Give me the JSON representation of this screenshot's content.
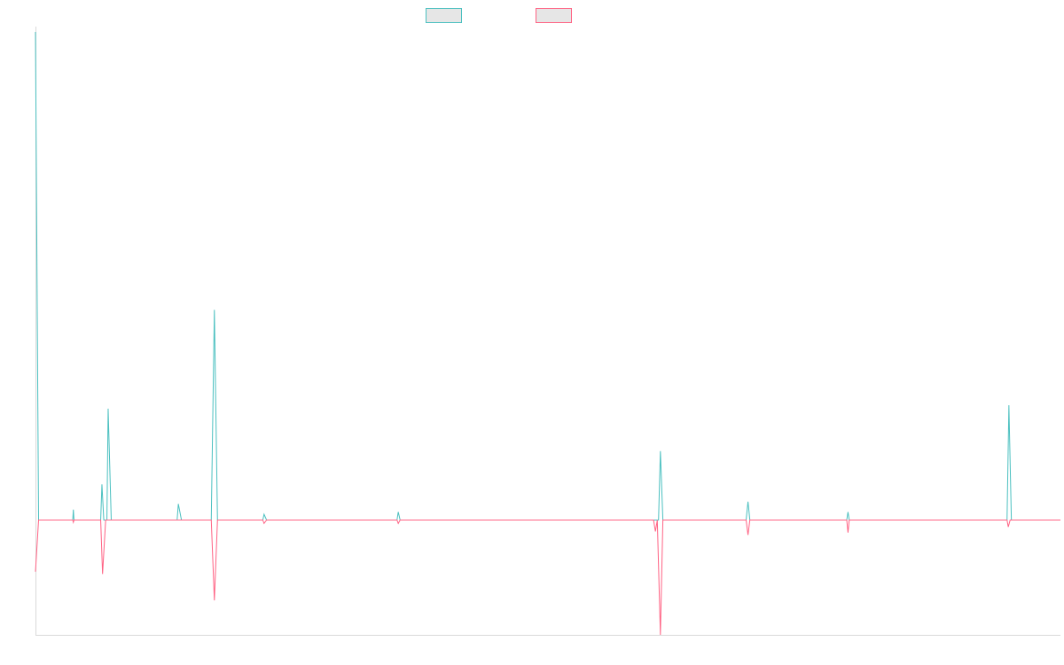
{
  "chart_data": {
    "type": "line",
    "title": "",
    "xlabel": "",
    "ylabel": "",
    "grid": false,
    "legend_position": "top-center",
    "x_count": 166,
    "ylim": [
      -100,
      425
    ],
    "colors": {
      "series_a": "#4bc0c0",
      "series_b": "#ff6384",
      "swatch_fill": "#e6e6e6"
    },
    "series": [
      {
        "name": "",
        "color": "#4bc0c0",
        "points": [
          [
            0,
            425
          ],
          [
            0.5,
            0
          ],
          [
            6,
            0
          ],
          [
            6.1,
            9
          ],
          [
            6.2,
            0
          ],
          [
            10.5,
            0
          ],
          [
            10.7,
            31
          ],
          [
            11,
            0
          ],
          [
            11.5,
            0
          ],
          [
            11.7,
            97
          ],
          [
            12.2,
            0
          ],
          [
            22.8,
            0
          ],
          [
            23,
            14
          ],
          [
            23.5,
            0
          ],
          [
            28.3,
            0
          ],
          [
            28.8,
            183
          ],
          [
            29.3,
            0
          ],
          [
            36.6,
            0
          ],
          [
            36.8,
            5
          ],
          [
            37.2,
            0
          ],
          [
            58.2,
            0
          ],
          [
            58.4,
            7
          ],
          [
            58.7,
            0
          ],
          [
            100.3,
            0
          ],
          [
            100.6,
            60
          ],
          [
            101,
            0
          ],
          [
            114.4,
            0
          ],
          [
            114.7,
            16
          ],
          [
            115,
            0
          ],
          [
            130.6,
            0
          ],
          [
            130.8,
            7
          ],
          [
            131,
            0
          ],
          [
            156.4,
            0
          ],
          [
            156.7,
            100
          ],
          [
            157.1,
            0
          ],
          [
            165,
            0
          ]
        ]
      },
      {
        "name": "",
        "color": "#ff6384",
        "points": [
          [
            0,
            -45
          ],
          [
            0.5,
            0
          ],
          [
            6,
            0
          ],
          [
            6.1,
            -2
          ],
          [
            6.2,
            0
          ],
          [
            10.5,
            0
          ],
          [
            10.8,
            -47
          ],
          [
            11.3,
            0
          ],
          [
            28.3,
            0
          ],
          [
            28.8,
            -70
          ],
          [
            29.3,
            0
          ],
          [
            36.6,
            0
          ],
          [
            36.8,
            -3
          ],
          [
            37.2,
            0
          ],
          [
            58.2,
            0
          ],
          [
            58.4,
            -3
          ],
          [
            58.7,
            0
          ],
          [
            99.5,
            0
          ],
          [
            99.8,
            -10
          ],
          [
            100.1,
            0
          ],
          [
            100.6,
            -100
          ],
          [
            101,
            0
          ],
          [
            114.4,
            0
          ],
          [
            114.7,
            -13
          ],
          [
            115,
            0
          ],
          [
            130.6,
            0
          ],
          [
            130.8,
            -11
          ],
          [
            131,
            0
          ],
          [
            156.4,
            0
          ],
          [
            156.6,
            -6
          ],
          [
            156.9,
            0
          ],
          [
            165,
            0
          ]
        ]
      }
    ]
  }
}
